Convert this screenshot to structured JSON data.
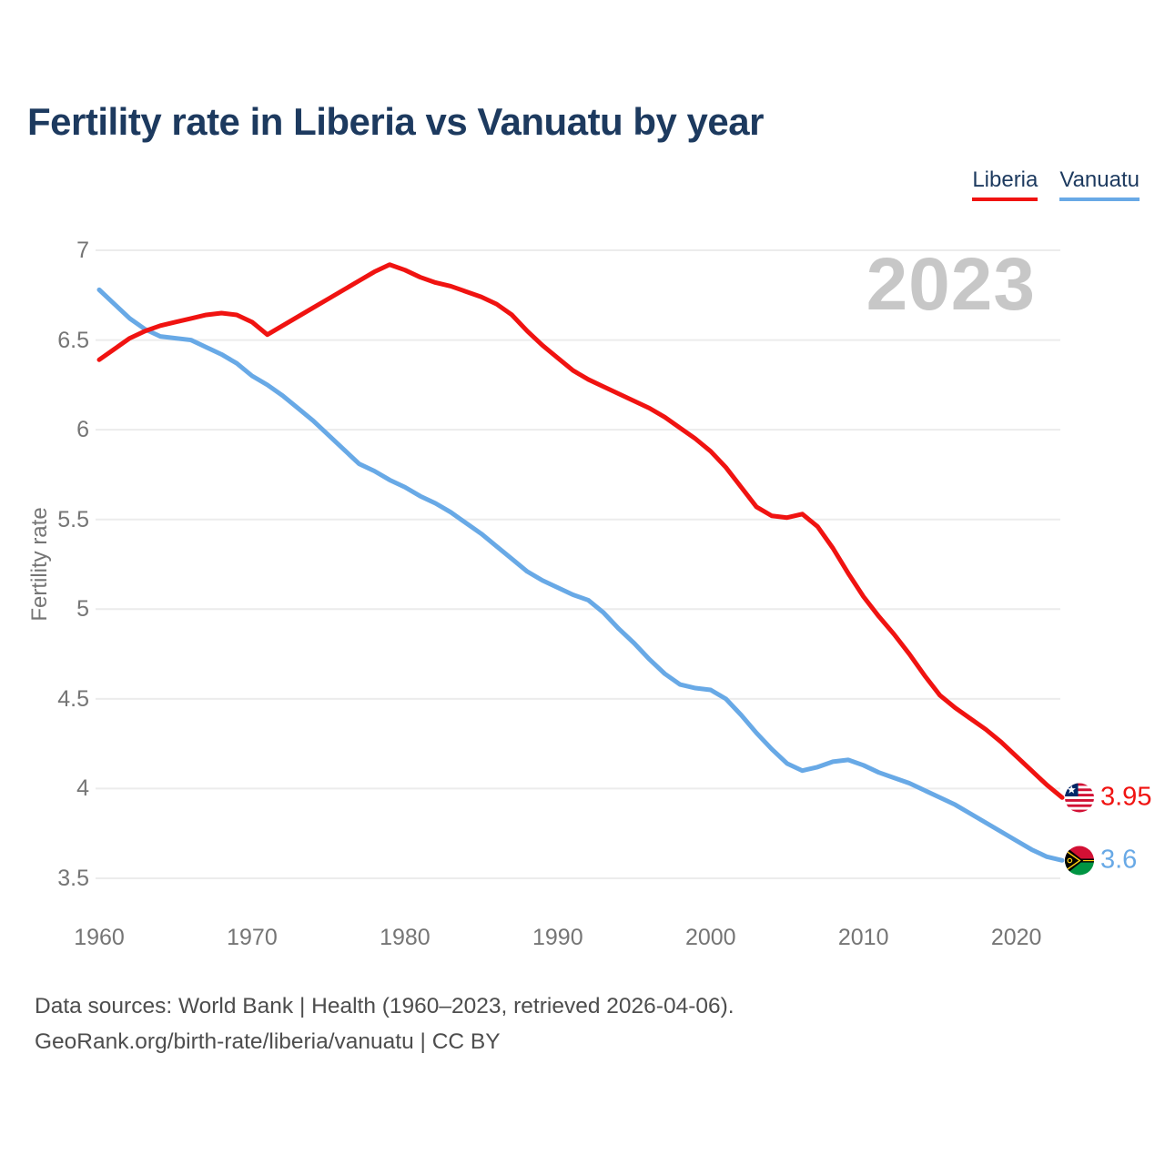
{
  "title": "Fertility rate in Liberia vs Vanuatu by year",
  "watermark": "2023",
  "legend": {
    "items": [
      {
        "label": "Liberia",
        "color": "#f01311"
      },
      {
        "label": "Vanuatu",
        "color": "#68a9e6"
      }
    ]
  },
  "y_axis": {
    "title": "Fertility rate",
    "tick_labels": [
      "7",
      "6.5",
      "6",
      "5.5",
      "5",
      "4.5",
      "4",
      "3.5"
    ],
    "tick_values": [
      7,
      6.5,
      6,
      5.5,
      5,
      4.5,
      4,
      3.5
    ]
  },
  "x_axis": {
    "tick_labels": [
      "1960",
      "1970",
      "1980",
      "1990",
      "2000",
      "2010",
      "2020"
    ],
    "tick_values": [
      1960,
      1970,
      1980,
      1990,
      2000,
      2010,
      2020
    ]
  },
  "end_labels": [
    {
      "series": "Liberia",
      "value": "3.95",
      "color": "#f01311",
      "flag_icon": "liberia-flag-icon"
    },
    {
      "series": "Vanuatu",
      "value": "3.6",
      "color": "#68a9e6",
      "flag_icon": "vanuatu-flag-icon"
    }
  ],
  "footer": {
    "line1": "Data sources: World Bank | Health (1960–2023, retrieved 2026-04-06).",
    "line2": "GeoRank.org/birth-rate/liberia/vanuatu | CC BY"
  },
  "chart_data": {
    "type": "line",
    "title": "Fertility rate in Liberia vs Vanuatu by year",
    "xlabel": "",
    "ylabel": "Fertility rate",
    "xlim": [
      1960,
      2023
    ],
    "ylim": [
      3.5,
      7
    ],
    "grid": true,
    "legend_position": "top-right",
    "x": [
      1960,
      1961,
      1962,
      1963,
      1964,
      1965,
      1966,
      1967,
      1968,
      1969,
      1970,
      1971,
      1972,
      1973,
      1974,
      1975,
      1976,
      1977,
      1978,
      1979,
      1980,
      1981,
      1982,
      1983,
      1984,
      1985,
      1986,
      1987,
      1988,
      1989,
      1990,
      1991,
      1992,
      1993,
      1994,
      1995,
      1996,
      1997,
      1998,
      1999,
      2000,
      2001,
      2002,
      2003,
      2004,
      2005,
      2006,
      2007,
      2008,
      2009,
      2010,
      2011,
      2012,
      2013,
      2014,
      2015,
      2016,
      2017,
      2018,
      2019,
      2020,
      2021,
      2022,
      2023
    ],
    "series": [
      {
        "name": "Liberia",
        "color": "#f01311",
        "values": [
          6.39,
          6.45,
          6.51,
          6.55,
          6.58,
          6.6,
          6.62,
          6.64,
          6.65,
          6.64,
          6.6,
          6.53,
          6.58,
          6.63,
          6.68,
          6.73,
          6.78,
          6.83,
          6.88,
          6.92,
          6.89,
          6.85,
          6.82,
          6.8,
          6.77,
          6.74,
          6.7,
          6.64,
          6.55,
          6.47,
          6.4,
          6.33,
          6.28,
          6.24,
          6.2,
          6.16,
          6.12,
          6.07,
          6.01,
          5.95,
          5.88,
          5.79,
          5.68,
          5.57,
          5.52,
          5.51,
          5.53,
          5.46,
          5.34,
          5.2,
          5.07,
          4.96,
          4.86,
          4.75,
          4.63,
          4.52,
          4.45,
          4.39,
          4.33,
          4.26,
          4.18,
          4.1,
          4.02,
          3.95
        ]
      },
      {
        "name": "Vanuatu",
        "color": "#68a9e6",
        "values": [
          6.78,
          6.7,
          6.62,
          6.56,
          6.52,
          6.51,
          6.5,
          6.46,
          6.42,
          6.37,
          6.3,
          6.25,
          6.19,
          6.12,
          6.05,
          5.97,
          5.89,
          5.81,
          5.77,
          5.72,
          5.68,
          5.63,
          5.59,
          5.54,
          5.48,
          5.42,
          5.35,
          5.28,
          5.21,
          5.16,
          5.12,
          5.08,
          5.05,
          4.98,
          4.89,
          4.81,
          4.72,
          4.64,
          4.58,
          4.56,
          4.55,
          4.5,
          4.41,
          4.31,
          4.22,
          4.14,
          4.1,
          4.12,
          4.15,
          4.16,
          4.13,
          4.09,
          4.06,
          4.03,
          3.99,
          3.95,
          3.91,
          3.86,
          3.81,
          3.76,
          3.71,
          3.66,
          3.62,
          3.6
        ]
      }
    ]
  }
}
